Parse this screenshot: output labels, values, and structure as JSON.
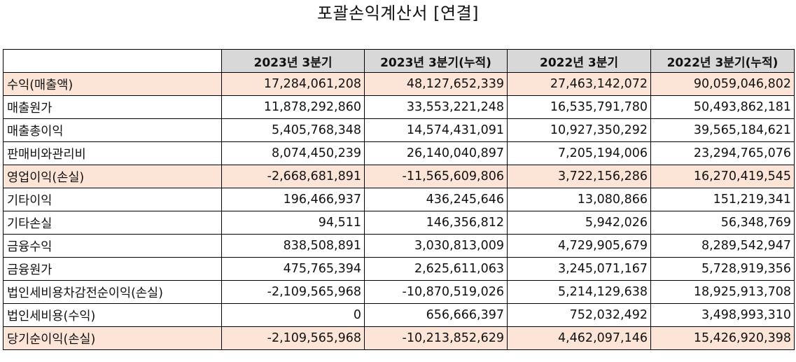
{
  "title": "포괄손익계산서 [연결]",
  "columns": [
    "",
    "2023년 3분기",
    "2023년 3분기(누적)",
    "2022년 3분기",
    "2022년 3분기(누적)"
  ],
  "highlight_color": "#fce4d6",
  "header_color": "#d8d8d8",
  "rows": [
    {
      "label": "수익(매출액)",
      "values": [
        "17,284,061,208",
        "48,127,652,339",
        "27,463,142,072",
        "90,059,046,802"
      ],
      "highlight": true
    },
    {
      "label": "매출원가",
      "values": [
        "11,878,292,860",
        "33,553,221,248",
        "16,535,791,780",
        "50,493,862,181"
      ],
      "highlight": false
    },
    {
      "label": "매출총이익",
      "values": [
        "5,405,768,348",
        "14,574,431,091",
        "10,927,350,292",
        "39,565,184,621"
      ],
      "highlight": false
    },
    {
      "label": "판매비와관리비",
      "values": [
        "8,074,450,239",
        "26,140,040,897",
        "7,205,194,006",
        "23,294,765,076"
      ],
      "highlight": false
    },
    {
      "label": "영업이익(손실)",
      "values": [
        "-2,668,681,891",
        "-11,565,609,806",
        "3,722,156,286",
        "16,270,419,545"
      ],
      "highlight": true
    },
    {
      "label": "기타이익",
      "values": [
        "196,466,937",
        "436,245,646",
        "13,080,866",
        "151,219,341"
      ],
      "highlight": false
    },
    {
      "label": "기타손실",
      "values": [
        "94,511",
        "146,356,812",
        "5,942,026",
        "56,348,769"
      ],
      "highlight": false
    },
    {
      "label": "금융수익",
      "values": [
        "838,508,891",
        "3,030,813,009",
        "4,729,905,679",
        "8,289,542,947"
      ],
      "highlight": false
    },
    {
      "label": "금융원가",
      "values": [
        "475,765,394",
        "2,625,611,063",
        "3,245,071,167",
        "5,728,919,356"
      ],
      "highlight": false
    },
    {
      "label": "법인세비용차감전순이익(손실)",
      "values": [
        "-2,109,565,968",
        "-10,870,519,026",
        "5,214,129,638",
        "18,925,913,708"
      ],
      "highlight": false
    },
    {
      "label": "법인세비용(수익)",
      "values": [
        "0",
        "656,666,397",
        "752,032,492",
        "3,498,993,310"
      ],
      "highlight": false
    },
    {
      "label": "당기순이익(손실)",
      "values": [
        "-2,109,565,968",
        "-10,213,852,629",
        "4,462,097,146",
        "15,426,920,398"
      ],
      "highlight": true
    }
  ]
}
